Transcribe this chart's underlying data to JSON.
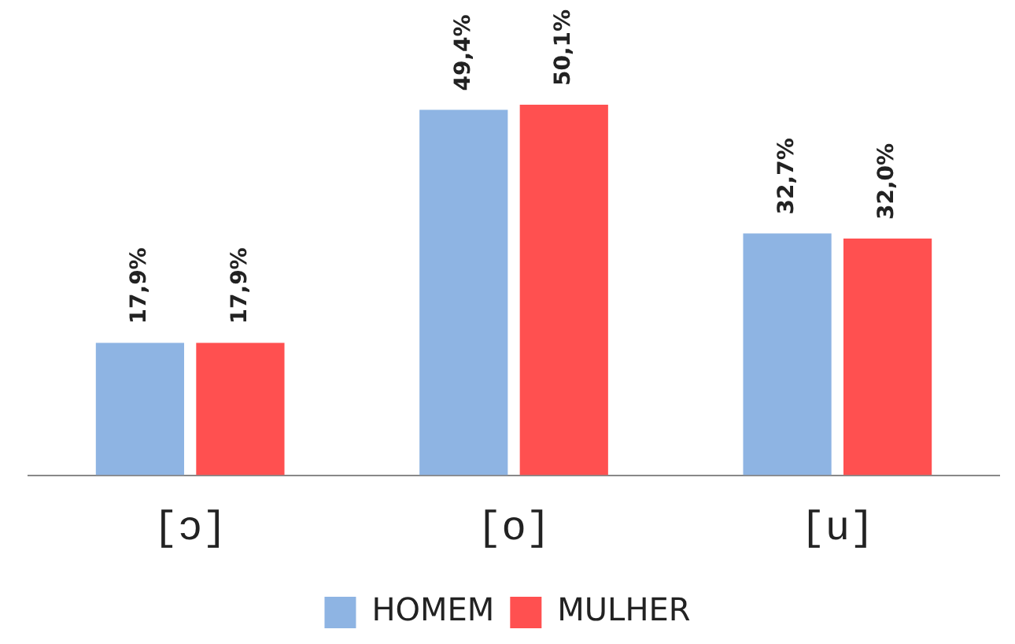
{
  "chart_data": {
    "type": "bar",
    "categories": [
      "[ɔ]",
      "[o]",
      "[u]"
    ],
    "series": [
      {
        "name": "HOMEM",
        "color": "#8eb4e3",
        "values": [
          17.9,
          49.4,
          32.7
        ],
        "value_labels": [
          "17,9%",
          "49,4%",
          "32,7%"
        ]
      },
      {
        "name": "MULHER",
        "color": "#ff5050",
        "values": [
          17.9,
          50.1,
          32.0
        ],
        "value_labels": [
          "17,9%",
          "50,1%",
          "32,0%"
        ]
      }
    ],
    "tick_labels": "x",
    "grid": false,
    "legend": "bottom"
  }
}
